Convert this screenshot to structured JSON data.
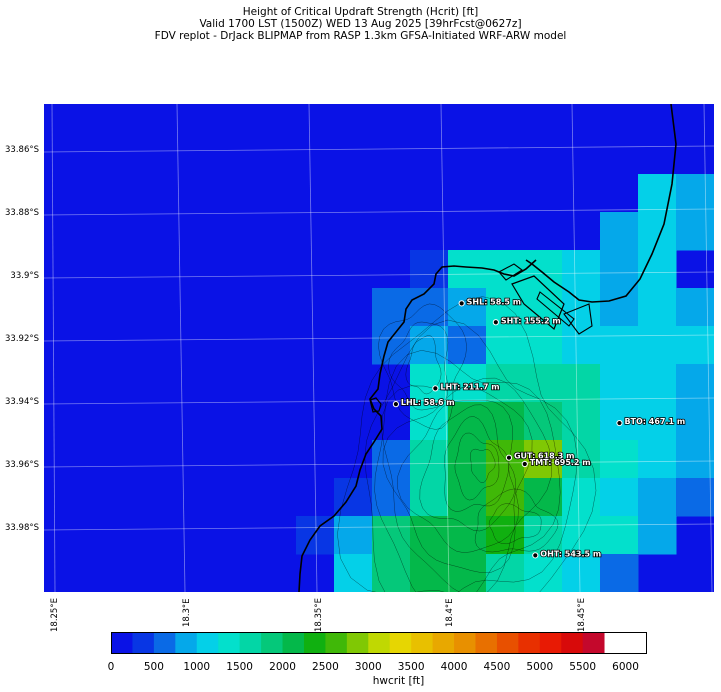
{
  "title": {
    "line1": "Height of Critical Updraft Strength (Hcrit) [ft]",
    "line2": "Valid 1700 LST (1500Z) WED 13 Aug 2025 [39hrFcst@0627z]",
    "line3": "FDV replot - DrJack BLIPMAP from RASP 1.3km GFSA-Initiated WRF-ARW model"
  },
  "axes": {
    "lat_labels": [
      "33.86°S",
      "33.88°S",
      "33.9°S",
      "33.92°S",
      "33.94°S",
      "33.96°S",
      "33.98°S"
    ],
    "lon_labels": [
      "18.25°E",
      "18.3°E",
      "18.35°E",
      "18.4°E",
      "18.45°E"
    ]
  },
  "sites": [
    {
      "label": "SHL: 58.5 m",
      "lon": 18.405,
      "lat": -33.909
    },
    {
      "label": "SHT: 155.2 m",
      "lon": 18.418,
      "lat": -33.915
    },
    {
      "label": "LHT: 211.7 m",
      "lon": 18.395,
      "lat": -33.936
    },
    {
      "label": "LHL: 58.6 m",
      "lon": 18.38,
      "lat": -33.941
    },
    {
      "label": "BTO: 467.1 m",
      "lon": 18.465,
      "lat": -33.947
    },
    {
      "label": "GUT: 618.3 m",
      "lon": 18.423,
      "lat": -33.958
    },
    {
      "label": "TMT: 695.2 m",
      "lon": 18.429,
      "lat": -33.96
    },
    {
      "label": "OHT: 543.5 m",
      "lon": 18.433,
      "lat": -33.989
    }
  ],
  "colorbar": {
    "label": "hwcrit [ft]",
    "tick_labels": [
      "0",
      "500",
      "1000",
      "1500",
      "2000",
      "2500",
      "3000",
      "3500",
      "4000",
      "4500",
      "5000",
      "5500",
      "6000"
    ],
    "colors": [
      "#0a12e6",
      "#0836e4",
      "#0a6ae6",
      "#05a8ea",
      "#04d0e8",
      "#03e0cc",
      "#03d6a6",
      "#05c87a",
      "#04b84a",
      "#10b010",
      "#40b808",
      "#80c804",
      "#c0d802",
      "#e6d602",
      "#e8c000",
      "#e8a800",
      "#e89000",
      "#e87000",
      "#e85000",
      "#e83000",
      "#e81a04",
      "#d80a0a",
      "#c4082c"
    ],
    "min": 0,
    "max": 6250,
    "step": 250
  },
  "grid_ft": [
    [
      0,
      0,
      0,
      0,
      0,
      0,
      0,
      0,
      0,
      0,
      0,
      0,
      0,
      0,
      0,
      0,
      0,
      0
    ],
    [
      0,
      0,
      0,
      0,
      0,
      0,
      0,
      0,
      0,
      0,
      0,
      0,
      0,
      0,
      0,
      0,
      0,
      0
    ],
    [
      0,
      0,
      0,
      0,
      0,
      0,
      0,
      0,
      0,
      0,
      0,
      0,
      0,
      0,
      0,
      0,
      0,
      0
    ],
    [
      0,
      0,
      0,
      0,
      0,
      0,
      0,
      0,
      0,
      0,
      0,
      0,
      0,
      0,
      0,
      0,
      0,
      0
    ],
    [
      0,
      0,
      0,
      0,
      0,
      0,
      0,
      0,
      0,
      0,
      0,
      0,
      0,
      0,
      0,
      0,
      1000,
      750
    ],
    [
      0,
      0,
      0,
      0,
      0,
      0,
      0,
      0,
      0,
      0,
      0,
      0,
      0,
      0,
      0,
      750,
      1000,
      750
    ],
    [
      0,
      0,
      0,
      0,
      0,
      0,
      0,
      0,
      0,
      0,
      250,
      1250,
      1250,
      1250,
      1000,
      750,
      1000,
      0
    ],
    [
      0,
      0,
      0,
      0,
      0,
      0,
      0,
      0,
      0,
      500,
      500,
      750,
      1250,
      1250,
      1000,
      750,
      1000,
      750
    ],
    [
      0,
      0,
      0,
      0,
      0,
      0,
      0,
      0,
      0,
      500,
      750,
      500,
      1250,
      1250,
      1000,
      1000,
      1000,
      1000
    ],
    [
      0,
      0,
      0,
      0,
      0,
      0,
      0,
      0,
      0,
      0,
      1250,
      1250,
      1500,
      1500,
      1500,
      1000,
      1000,
      750
    ],
    [
      0,
      0,
      0,
      0,
      0,
      0,
      0,
      0,
      0,
      0,
      1250,
      2000,
      2000,
      1750,
      1500,
      1000,
      1000,
      750
    ],
    [
      0,
      0,
      0,
      0,
      0,
      0,
      0,
      0,
      0,
      500,
      1500,
      2000,
      2500,
      2750,
      1500,
      1250,
      1000,
      750
    ],
    [
      0,
      0,
      0,
      0,
      0,
      0,
      0,
      0,
      250,
      500,
      1500,
      2000,
      2500,
      2000,
      1250,
      1000,
      750,
      500
    ],
    [
      0,
      0,
      0,
      0,
      0,
      0,
      0,
      250,
      750,
      1750,
      2000,
      2000,
      2250,
      1500,
      1250,
      1250,
      750,
      0
    ],
    [
      0,
      0,
      0,
      0,
      0,
      0,
      0,
      0,
      1000,
      1750,
      2000,
      2000,
      1500,
      1250,
      1000,
      500,
      0,
      0
    ]
  ]
}
